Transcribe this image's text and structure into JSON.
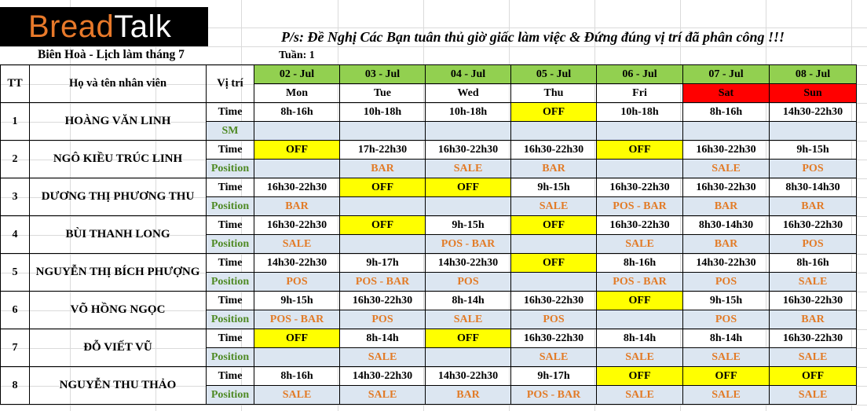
{
  "logo": {
    "part1": "Bread",
    "part2": "Talk"
  },
  "note": "P/s: Đề Nghị Các Bạn tuân thủ giờ giấc làm việc & Đứng đúng vị trí đã phân công !!!",
  "title": "Biên Hoà - Lịch làm tháng 7",
  "week": "Tuần: 1",
  "headers": {
    "tt": "TT",
    "name": "Họ và tên nhân viên",
    "position": "Vị trí"
  },
  "dates": [
    "02 - Jul",
    "03 - Jul",
    "04 - Jul",
    "05 - Jul",
    "06 - Jul",
    "07 - Jul",
    "08 - Jul"
  ],
  "days": [
    "Mon",
    "Tue",
    "Wed",
    "Thu",
    "Fri",
    "Sat",
    "Sun"
  ],
  "colors": {
    "date_header": "#92d050",
    "weekend": "#ff0000",
    "off": "#ffff00",
    "position_row": "#dce6f1",
    "position_text": "#e27b27",
    "position_label": "#4f8a25",
    "logo_bread": "#e8792a"
  },
  "employees": [
    {
      "tt": "1",
      "name": "HOÀNG VĂN LINH",
      "time_label": "Time",
      "pos_label": "SM",
      "time": [
        "8h-16h",
        "10h-18h",
        "10h-18h",
        "OFF",
        "10h-18h",
        "8h-16h",
        "14h30-22h30"
      ],
      "pos": [
        "",
        "",
        "",
        "",
        "",
        "",
        ""
      ]
    },
    {
      "tt": "2",
      "name": "NGÔ KIỀU TRÚC LINH",
      "time_label": "Time",
      "pos_label": "Position",
      "time": [
        "OFF",
        "17h-22h30",
        "16h30-22h30",
        "16h30-22h30",
        "OFF",
        "16h30-22h30",
        "9h-15h"
      ],
      "pos": [
        "",
        "BAR",
        "SALE",
        "BAR",
        "",
        "SALE",
        "POS"
      ]
    },
    {
      "tt": "3",
      "name": "DƯƠNG THỊ PHƯƠNG THU",
      "time_label": "Time",
      "pos_label": "Position",
      "time": [
        "16h30-22h30",
        "OFF",
        "OFF",
        "9h-15h",
        "16h30-22h30",
        "16h30-22h30",
        "8h30-14h30"
      ],
      "pos": [
        "BAR",
        "",
        "",
        "SALE",
        "POS - BAR",
        "BAR",
        "BAR"
      ]
    },
    {
      "tt": "4",
      "name": "BÙI THANH LONG",
      "time_label": "Time",
      "pos_label": "Position",
      "time": [
        "16h30-22h30",
        "OFF",
        "9h-15h",
        "OFF",
        "16h30-22h30",
        "8h30-14h30",
        "16h30-22h30"
      ],
      "pos": [
        "SALE",
        "",
        "POS - BAR",
        "",
        "SALE",
        "BAR",
        "POS"
      ]
    },
    {
      "tt": "5",
      "name": "NGUYỄN THỊ BÍCH PHƯỢNG",
      "time_label": "Time",
      "pos_label": "Position",
      "time": [
        "14h30-22h30",
        "9h-17h",
        "14h30-22h30",
        "OFF",
        "8h-16h",
        "14h30-22h30",
        "8h-16h"
      ],
      "pos": [
        "POS",
        "POS - BAR",
        "POS",
        "",
        "POS - BAR",
        "POS",
        "SALE"
      ]
    },
    {
      "tt": "6",
      "name": "VÕ HỒNG NGỌC",
      "time_label": "Time",
      "pos_label": "Position",
      "time": [
        "9h-15h",
        "16h30-22h30",
        "8h-14h",
        "16h30-22h30",
        "OFF",
        "9h-15h",
        "16h30-22h30"
      ],
      "pos": [
        "POS - BAR",
        "POS",
        "SALE",
        "POS",
        "",
        "POS",
        "BAR"
      ]
    },
    {
      "tt": "7",
      "name": "ĐỖ VIẾT VŨ",
      "time_label": "Time",
      "pos_label": "Position",
      "time": [
        "OFF",
        "8h-14h",
        "OFF",
        "16h30-22h30",
        "8h-14h",
        "8h-14h",
        "16h30-22h30"
      ],
      "pos": [
        "",
        "SALE",
        "",
        "SALE",
        "SALE",
        "SALE",
        "SALE"
      ]
    },
    {
      "tt": "8",
      "name": "NGUYỄN THU THẢO",
      "time_label": "Time",
      "pos_label": "Position",
      "time": [
        "8h-16h",
        "14h30-22h30",
        "14h30-22h30",
        "9h-17h",
        "OFF",
        "OFF",
        "OFF"
      ],
      "pos": [
        "SALE",
        "SALE",
        "BAR",
        "POS - BAR",
        "SALE",
        "SALE",
        "SALE"
      ]
    }
  ]
}
